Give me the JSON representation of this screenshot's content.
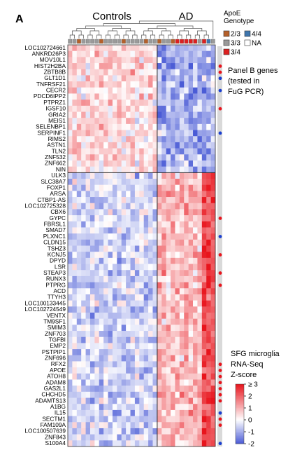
{
  "panel_label": "A",
  "group_labels": [
    "Controls",
    "AD"
  ],
  "legend_genotype": {
    "title_line1": "ApoE",
    "title_line2": "Genotype",
    "items": [
      {
        "label": "2/3",
        "color": "#b5602a"
      },
      {
        "label": "4/4",
        "color": "#3f76ad"
      },
      {
        "label": "3/3",
        "color": "#9a9a9a"
      },
      {
        "label": "NA",
        "color": "#ffffff"
      },
      {
        "label": "3/4",
        "color": "#dd2020"
      }
    ]
  },
  "panel_b_note": [
    "Panel B genes",
    "(tested in",
    "FuG PCR)"
  ],
  "colorbar": {
    "title_lines": [
      "SFG microglia",
      "RNA-Seq",
      "Z-score"
    ],
    "ticks": [
      "≥ 3",
      "2",
      "1",
      "0",
      "-1",
      "-2"
    ]
  },
  "colors": {
    "high": "#e8141c",
    "mid": "#ffffff",
    "low": "#4a5bd6",
    "marker_red": "#e8141c",
    "marker_blue": "#1a3fd0",
    "side_bar": "#d9d9d9"
  },
  "chart_data": {
    "type": "heatmap",
    "genes": [
      "LOC102724661",
      "ANKRD26P3",
      "MOV10L1",
      "HIST2H2BA",
      "ZBTB8B",
      "GLT1D1",
      "TNFRSF21",
      "CECR2",
      "PDCD6IPP2",
      "PTPRZ1",
      "IGSF10",
      "GRIA2",
      "MEIS1",
      "SELENBP1",
      "SERPINF1",
      "RIMS2",
      "ASTN1",
      "TLN2",
      "ZNF532",
      "ZNF662",
      "NIN",
      "ULK3",
      "SLC38A7",
      "FOXP1",
      "ARSA",
      "CTBP1-AS",
      "LOC102725328",
      "CBX6",
      "GYPC",
      "FBRSL1",
      "SMAD7",
      "PLXNC1",
      "CLDN15",
      "TSHZ3",
      "KCNJ5",
      "DPYD",
      "LSR",
      "STEAP3",
      "RUNX3",
      "PTPRG",
      "ACD",
      "TTYH3",
      "LOC100133445",
      "LOC102724549",
      "VENTX",
      "TM9SF1",
      "SMIM3",
      "ZNF703",
      "TGFBI",
      "EMP2",
      "PSTPIP1",
      "ZNF696",
      "RFX2",
      "APOE",
      "ATOH8",
      "ADAM8",
      "GAS2L1",
      "CHCHD5",
      "ADAMTS13",
      "A1BG",
      "IL15",
      "SECTM1",
      "FAM109A",
      "LOC100507639",
      "ZNF843",
      "S100A4"
    ],
    "sample_groups": {
      "Controls": 20,
      "AD": 13
    },
    "sample_genotypes": [
      "3/3",
      "3/3",
      "2/3",
      "3/3",
      "3/3",
      "3/3",
      "3/3",
      "2/3",
      "3/3",
      "3/3",
      "3/3",
      "3/3",
      "2/3",
      "3/3",
      "3/3",
      "3/3",
      "3/3",
      "2/3",
      "3/3",
      "3/3",
      "2/3",
      "3/3",
      "3/3",
      "2/3",
      "3/4",
      "3/4",
      "3/4",
      "3/4",
      "3/4",
      "3/3",
      "3/4",
      "4/4",
      "3/3"
    ],
    "row_split_after_gene": "NIN",
    "panel_b_markers": [
      {
        "gene": "HIST2H2BA",
        "marker": "red"
      },
      {
        "gene": "ZBTB8B",
        "marker": "red"
      },
      {
        "gene": "GLT1D1",
        "marker": "blue"
      },
      {
        "gene": "CECR2",
        "marker": "blue"
      },
      {
        "gene": "IGSF10",
        "marker": "red"
      },
      {
        "gene": "SERPINF1",
        "marker": "blue"
      },
      {
        "gene": "GYPC",
        "marker": "red"
      },
      {
        "gene": "PLXNC1",
        "marker": "blue"
      },
      {
        "gene": "KCNJ5",
        "marker": "red"
      },
      {
        "gene": "STEAP3",
        "marker": "red"
      },
      {
        "gene": "PTPRG",
        "marker": "red"
      },
      {
        "gene": "RFX2",
        "marker": "red"
      },
      {
        "gene": "APOE",
        "marker": "red"
      },
      {
        "gene": "ATOH8",
        "marker": "red"
      },
      {
        "gene": "ADAM8",
        "marker": "red"
      },
      {
        "gene": "GAS2L1",
        "marker": "red"
      },
      {
        "gene": "CHCHD5",
        "marker": "red"
      },
      {
        "gene": "ADAMTS13",
        "marker": "red"
      },
      {
        "gene": "IL15",
        "marker": "blue"
      },
      {
        "gene": "SECTM1",
        "marker": "red"
      },
      {
        "gene": "FAM109A",
        "marker": "red"
      },
      {
        "gene": "S100A4",
        "marker": "blue"
      }
    ],
    "color_scale": {
      "min": -2,
      "max": 3
    }
  }
}
